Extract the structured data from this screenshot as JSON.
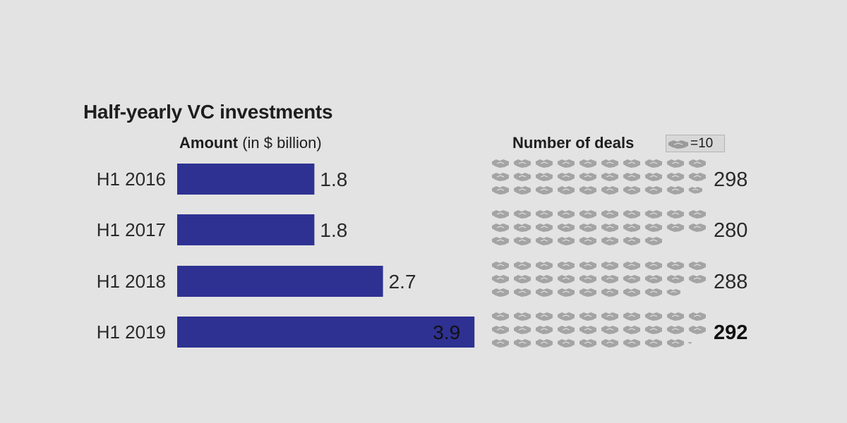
{
  "chart_data": {
    "type": "bar",
    "title": "Half-yearly VC investments",
    "categories": [
      "H1 2016",
      "H1 2017",
      "H1 2018",
      "H1 2019"
    ],
    "series": [
      {
        "name": "Amount",
        "unit": "(in $ billion)",
        "values": [
          1.8,
          1.8,
          2.7,
          3.9
        ],
        "labels": [
          "1.8",
          "1.8",
          "2.7",
          "3.9"
        ]
      },
      {
        "name": "Number of deals",
        "values": [
          298,
          280,
          288,
          292
        ],
        "labels": [
          "298",
          "280",
          "288",
          "292"
        ],
        "highlight_index": 3
      }
    ],
    "deals_legend": {
      "text": "=10",
      "icon": "handshake-icon",
      "per_icon": 10
    },
    "bar_color": "#2e3192",
    "icon_color": "#a4a4a4"
  }
}
